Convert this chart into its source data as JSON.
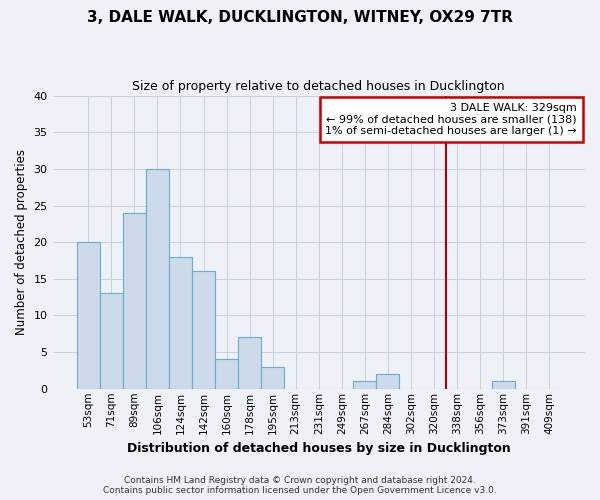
{
  "title": "3, DALE WALK, DUCKLINGTON, WITNEY, OX29 7TR",
  "subtitle": "Size of property relative to detached houses in Ducklington",
  "xlabel": "Distribution of detached houses by size in Ducklington",
  "ylabel": "Number of detached properties",
  "bar_labels": [
    "53sqm",
    "71sqm",
    "89sqm",
    "106sqm",
    "124sqm",
    "142sqm",
    "160sqm",
    "178sqm",
    "195sqm",
    "213sqm",
    "231sqm",
    "249sqm",
    "267sqm",
    "284sqm",
    "302sqm",
    "320sqm",
    "338sqm",
    "356sqm",
    "373sqm",
    "391sqm",
    "409sqm"
  ],
  "bar_values": [
    20,
    13,
    24,
    30,
    18,
    16,
    4,
    7,
    3,
    0,
    0,
    0,
    1,
    2,
    0,
    0,
    0,
    0,
    1,
    0,
    0
  ],
  "bar_color": "#ccdaea",
  "bar_edge_color": "#6aabd2",
  "grid_color": "#c8d0dc",
  "annotation_title": "3 DALE WALK: 329sqm",
  "annotation_line1": "← 99% of detached houses are smaller (138)",
  "annotation_line2": "1% of semi-detached houses are larger (1) →",
  "annotation_box_color": "#ffffff",
  "annotation_box_edge": "#cc0000",
  "vline_color": "#aa0000",
  "ylim": [
    0,
    40
  ],
  "yticks": [
    0,
    5,
    10,
    15,
    20,
    25,
    30,
    35,
    40
  ],
  "footer1": "Contains HM Land Registry data © Crown copyright and database right 2024.",
  "footer2": "Contains public sector information licensed under the Open Government Licence v3.0.",
  "bg_color": "#eef2f8"
}
